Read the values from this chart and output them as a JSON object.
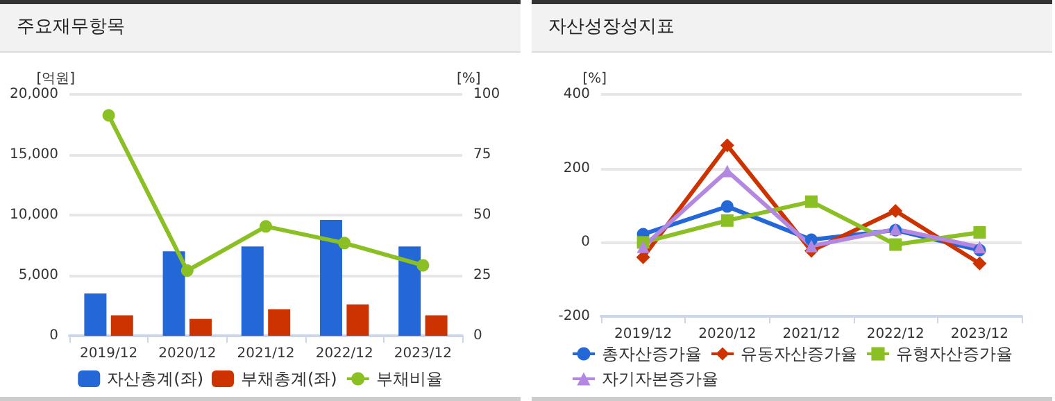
{
  "chart_data": [
    {
      "type": "bar",
      "title": "주요재무항목",
      "categories": [
        "2019/12",
        "2020/12",
        "2021/12",
        "2022/12",
        "2023/12"
      ],
      "ylabel": "[억원]",
      "y2label": "[%]",
      "ylim": [
        0,
        20000
      ],
      "yticks": [
        0,
        {
          "value": 5000,
          "label": "5,000"
        },
        {
          "value": 10000,
          "label": "10,000"
        },
        {
          "value": 15000,
          "label": "15,000"
        },
        {
          "value": 20000,
          "label": "20,000"
        }
      ],
      "y2lim": [
        0,
        100
      ],
      "y2ticks": [
        0,
        25,
        50,
        75,
        100
      ],
      "grid": "y",
      "legend": "bottom",
      "series": [
        {
          "name": "자산총계(좌)",
          "color": "#2468d8",
          "values": [
            3500,
            7000,
            7400,
            9600,
            7400
          ]
        },
        {
          "name": "부채총계(좌)",
          "color": "#cc3300",
          "values": [
            1700,
            1400,
            2200,
            2600,
            1700
          ]
        },
        {
          "name": "부채비율",
          "type": "line",
          "axis": "y2",
          "marker": "circle",
          "color": "#8ac023",
          "values": [
            91.3,
            27,
            45.3,
            38.4,
            29.2
          ]
        }
      ]
    },
    {
      "type": "line",
      "title": "자산성장성지표",
      "categories": [
        "2019/12",
        "2020/12",
        "2021/12",
        "2022/12",
        "2023/12"
      ],
      "ylabel": "[%]",
      "ylim": [
        -200,
        400
      ],
      "yticks": [
        -200,
        0,
        200,
        400
      ],
      "grid": "y",
      "legend": "bottom",
      "series": [
        {
          "name": "총자산증가율",
          "marker": "circle",
          "color": "#2468d8",
          "values": [
            22,
            97,
            7,
            33,
            -21
          ]
        },
        {
          "name": "유동자산증가율",
          "marker": "diamond",
          "color": "#cc3300",
          "values": [
            -40,
            262,
            -23,
            85,
            -57
          ]
        },
        {
          "name": "유형자산증가율",
          "marker": "square",
          "color": "#8ac023",
          "values": [
            0,
            59,
            110,
            -6,
            27
          ]
        },
        {
          "name": "자기자본증가율",
          "marker": "triangle",
          "color": "#b388e0",
          "values": [
            -12,
            193,
            -10,
            36,
            -13
          ]
        }
      ]
    }
  ]
}
